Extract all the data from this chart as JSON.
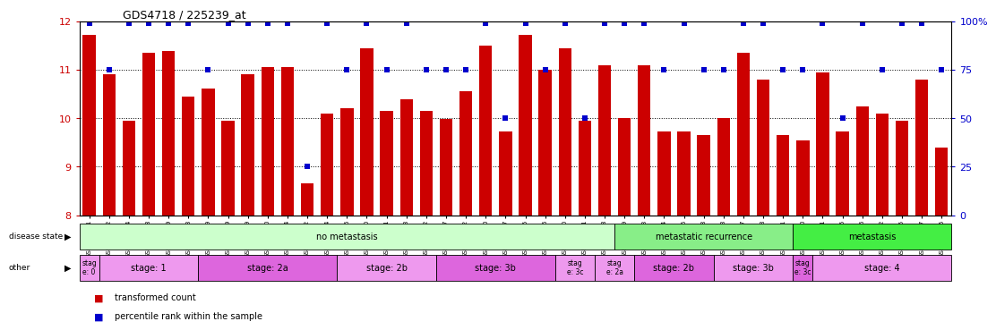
{
  "title": "GDS4718 / 225239_at",
  "samples": [
    "GSM549121",
    "GSM549102",
    "GSM549104",
    "GSM549108",
    "GSM549119",
    "GSM549133",
    "GSM549139",
    "GSM549099",
    "GSM549109",
    "GSM549110",
    "GSM549114",
    "GSM549122",
    "GSM549134",
    "GSM549136",
    "GSM549140",
    "GSM549111",
    "GSM549113",
    "GSM549132",
    "GSM549137",
    "GSM549142",
    "GSM549100",
    "GSM549107",
    "GSM549115",
    "GSM549116",
    "GSM549120",
    "GSM549131",
    "GSM549118",
    "GSM549129",
    "GSM549123",
    "GSM549124",
    "GSM549126",
    "GSM549128",
    "GSM549103",
    "GSM549117",
    "GSM549138",
    "GSM549141",
    "GSM549130",
    "GSM549101",
    "GSM549105",
    "GSM549106",
    "GSM549112",
    "GSM549125",
    "GSM549127",
    "GSM549135"
  ],
  "bar_values": [
    11.72,
    10.9,
    9.95,
    11.35,
    11.38,
    10.45,
    10.62,
    9.95,
    10.9,
    11.05,
    11.05,
    8.65,
    10.1,
    10.2,
    11.45,
    10.15,
    10.4,
    10.15,
    9.98,
    10.55,
    11.5,
    9.72,
    11.72,
    11.0,
    11.45,
    9.95,
    11.1,
    10.0,
    11.1,
    9.72,
    9.72,
    9.65,
    10.0,
    11.35,
    10.8,
    9.65,
    9.55,
    10.95,
    9.72,
    10.25,
    10.1,
    9.95,
    10.8,
    9.4
  ],
  "percentile_values": [
    99,
    75,
    99,
    99,
    99,
    99,
    75,
    99,
    99,
    99,
    99,
    25,
    99,
    75,
    99,
    75,
    99,
    75,
    75,
    75,
    99,
    50,
    99,
    75,
    99,
    50,
    99,
    99,
    99,
    75,
    99,
    75,
    75,
    99,
    99,
    75,
    75,
    99,
    50,
    99,
    75,
    99,
    99,
    75
  ],
  "bar_color": "#cc0000",
  "dot_color": "#0000cc",
  "bg_color": "#ffffff",
  "ylim_left": [
    8,
    12
  ],
  "ylim_right": [
    0,
    100
  ],
  "yticks_left": [
    8,
    9,
    10,
    11,
    12
  ],
  "yticks_right": [
    0,
    25,
    50,
    75,
    100
  ],
  "ytick_right_labels": [
    "0",
    "25",
    "50",
    "75",
    "100%"
  ],
  "disease_state_groups": [
    {
      "label": "no metastasis",
      "start": 0,
      "end": 27,
      "color": "#ccffcc"
    },
    {
      "label": "metastatic recurrence",
      "start": 27,
      "end": 36,
      "color": "#88ee88"
    },
    {
      "label": "metastasis",
      "start": 36,
      "end": 44,
      "color": "#44ee44"
    }
  ],
  "stage_groups": [
    {
      "label": "stag\ne: 0",
      "start": 0,
      "end": 1,
      "color": "#ee99ee"
    },
    {
      "label": "stage: 1",
      "start": 1,
      "end": 6,
      "color": "#ee99ee"
    },
    {
      "label": "stage: 2a",
      "start": 6,
      "end": 13,
      "color": "#dd66dd"
    },
    {
      "label": "stage: 2b",
      "start": 13,
      "end": 18,
      "color": "#ee99ee"
    },
    {
      "label": "stage: 3b",
      "start": 18,
      "end": 24,
      "color": "#dd66dd"
    },
    {
      "label": "stag\ne: 3c",
      "start": 24,
      "end": 26,
      "color": "#ee99ee"
    },
    {
      "label": "stag\ne: 2a",
      "start": 26,
      "end": 28,
      "color": "#ee99ee"
    },
    {
      "label": "stage: 2b",
      "start": 28,
      "end": 32,
      "color": "#dd66dd"
    },
    {
      "label": "stage: 3b",
      "start": 32,
      "end": 36,
      "color": "#ee99ee"
    },
    {
      "label": "stag\ne: 3c",
      "start": 36,
      "end": 37,
      "color": "#dd66dd"
    },
    {
      "label": "stage: 4",
      "start": 37,
      "end": 44,
      "color": "#ee99ee"
    }
  ],
  "legend_items": [
    {
      "label": "transformed count",
      "color": "#cc0000"
    },
    {
      "label": "percentile rank within the sample",
      "color": "#0000cc"
    }
  ],
  "n_bars": 44
}
